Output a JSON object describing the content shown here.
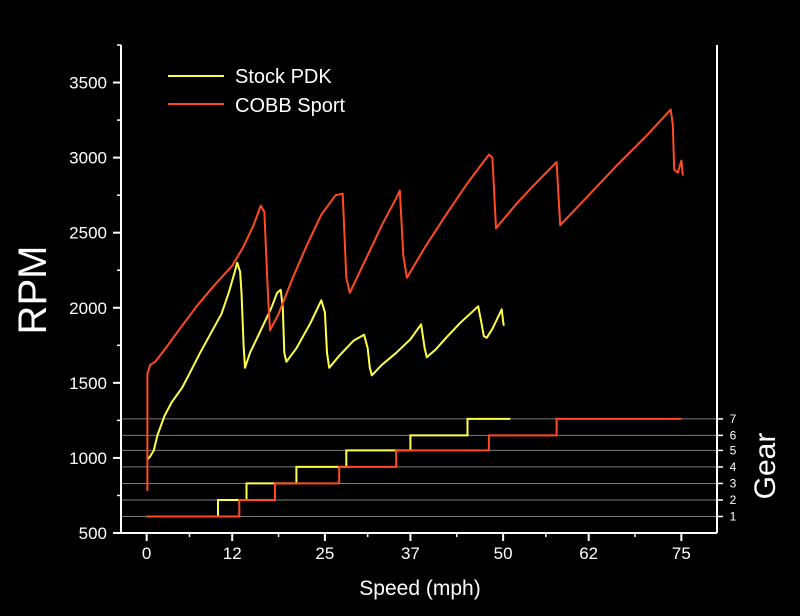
{
  "chart_data": {
    "type": "line",
    "xlabel": "Speed (mph)",
    "ylabel": "RPM",
    "y2label": "Gear",
    "xlim": [
      -3.6,
      80
    ],
    "ylim": [
      500,
      3750
    ],
    "x_ticks": [
      0,
      12,
      25,
      37,
      50,
      62,
      75
    ],
    "x_tick_labels": [
      "0",
      "12",
      "25",
      "37",
      "50",
      "62",
      "75"
    ],
    "y_ticks": [
      500,
      1000,
      1500,
      2000,
      2500,
      3000,
      3500
    ],
    "y_tick_labels": [
      "500",
      "1000",
      "1500",
      "2000",
      "2500",
      "3000",
      "3500"
    ],
    "gear_levels": [
      1,
      2,
      3,
      4,
      5,
      6,
      7
    ],
    "gear_tick_labels": [
      "1",
      "2",
      "3",
      "4",
      "5",
      "6",
      "7"
    ],
    "gear_rpm_positions": [
      610,
      720,
      830,
      940,
      1050,
      1150,
      1260
    ],
    "legend": {
      "placement": "top-left"
    },
    "colors": {
      "background": "#000000",
      "axis": "#ffffff",
      "gridline": "#7a7a7a"
    },
    "series": [
      {
        "name": "Stock PDK",
        "color": "#ffff44",
        "rpm": [
          [
            0.1,
            990
          ],
          [
            0.5,
            1010
          ],
          [
            1,
            1050
          ],
          [
            1.5,
            1150
          ],
          [
            2.5,
            1280
          ],
          [
            3.5,
            1370
          ],
          [
            5,
            1470
          ],
          [
            6,
            1560
          ],
          [
            7.5,
            1700
          ],
          [
            9,
            1830
          ],
          [
            10.5,
            1960
          ],
          [
            11.5,
            2100
          ],
          [
            12.3,
            2230
          ],
          [
            12.7,
            2300
          ],
          [
            13.1,
            2240
          ],
          [
            13.3,
            2100
          ],
          [
            13.6,
            1750
          ],
          [
            13.8,
            1600
          ],
          [
            14.5,
            1700
          ],
          [
            15.5,
            1800
          ],
          [
            16.5,
            1900
          ],
          [
            17.5,
            2000
          ],
          [
            18.3,
            2100
          ],
          [
            18.8,
            2120
          ],
          [
            19.1,
            2000
          ],
          [
            19.3,
            1700
          ],
          [
            19.6,
            1640
          ],
          [
            21,
            1730
          ],
          [
            23,
            1900
          ],
          [
            24.5,
            2050
          ],
          [
            25,
            1970
          ],
          [
            25.3,
            1700
          ],
          [
            25.6,
            1600
          ],
          [
            27,
            1680
          ],
          [
            29,
            1780
          ],
          [
            30.5,
            1820
          ],
          [
            31,
            1730
          ],
          [
            31.3,
            1600
          ],
          [
            31.6,
            1550
          ],
          [
            33,
            1620
          ],
          [
            35,
            1700
          ],
          [
            37,
            1790
          ],
          [
            38.5,
            1890
          ],
          [
            39,
            1730
          ],
          [
            39.3,
            1670
          ],
          [
            40.5,
            1720
          ],
          [
            42,
            1800
          ],
          [
            44,
            1900
          ],
          [
            46.5,
            2010
          ],
          [
            47,
            1890
          ],
          [
            47.3,
            1810
          ],
          [
            47.7,
            1800
          ],
          [
            48.5,
            1860
          ],
          [
            49.5,
            1960
          ],
          [
            49.8,
            1990
          ],
          [
            50,
            1910
          ],
          [
            50.1,
            1880
          ]
        ],
        "gear": [
          [
            0,
            610
          ],
          [
            10,
            610
          ],
          [
            10,
            720
          ],
          [
            14,
            720
          ],
          [
            14,
            830
          ],
          [
            21,
            830
          ],
          [
            21,
            940
          ],
          [
            28,
            940
          ],
          [
            28,
            1050
          ],
          [
            37,
            1050
          ],
          [
            37,
            1150
          ],
          [
            45,
            1150
          ],
          [
            45,
            1260
          ],
          [
            51,
            1260
          ]
        ]
      },
      {
        "name": "COBB Sport",
        "color": "#ff4a22",
        "rpm": [
          [
            0.1,
            780
          ],
          [
            0.1,
            1560
          ],
          [
            0.5,
            1620
          ],
          [
            1.2,
            1640
          ],
          [
            2.5,
            1720
          ],
          [
            4.5,
            1850
          ],
          [
            7,
            2010
          ],
          [
            9.5,
            2150
          ],
          [
            12,
            2280
          ],
          [
            13.5,
            2400
          ],
          [
            15,
            2550
          ],
          [
            16,
            2680
          ],
          [
            16.5,
            2640
          ],
          [
            17,
            2100
          ],
          [
            17.3,
            1850
          ],
          [
            18.5,
            1960
          ],
          [
            20.5,
            2200
          ],
          [
            22.5,
            2420
          ],
          [
            24.5,
            2620
          ],
          [
            26.5,
            2750
          ],
          [
            27.5,
            2760
          ],
          [
            28,
            2200
          ],
          [
            28.5,
            2100
          ],
          [
            30.5,
            2300
          ],
          [
            33,
            2550
          ],
          [
            35,
            2730
          ],
          [
            35.5,
            2780
          ],
          [
            36,
            2350
          ],
          [
            36.5,
            2200
          ],
          [
            39,
            2400
          ],
          [
            42,
            2620
          ],
          [
            45,
            2830
          ],
          [
            48,
            3020
          ],
          [
            48.5,
            3000
          ],
          [
            49,
            2530
          ],
          [
            52,
            2700
          ],
          [
            55,
            2850
          ],
          [
            57.5,
            2970
          ],
          [
            58,
            2550
          ],
          [
            62,
            2750
          ],
          [
            66,
            2950
          ],
          [
            70,
            3140
          ],
          [
            73.5,
            3320
          ],
          [
            73.8,
            3220
          ],
          [
            74,
            2920
          ],
          [
            74.5,
            2900
          ],
          [
            75,
            2980
          ],
          [
            75.2,
            2880
          ]
        ],
        "gear": [
          [
            0,
            610
          ],
          [
            13,
            610
          ],
          [
            13,
            720
          ],
          [
            18,
            720
          ],
          [
            18,
            830
          ],
          [
            27,
            830
          ],
          [
            27,
            940
          ],
          [
            35,
            940
          ],
          [
            35,
            1050
          ],
          [
            48,
            1050
          ],
          [
            48,
            1150
          ],
          [
            57.5,
            1150
          ],
          [
            57.5,
            1260
          ],
          [
            75,
            1260
          ]
        ]
      }
    ]
  }
}
